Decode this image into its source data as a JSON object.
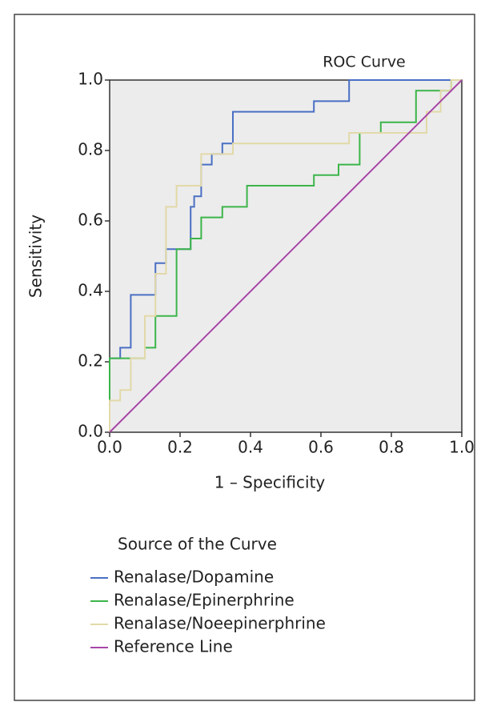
{
  "chart_data": {
    "type": "line",
    "title": "ROC Curve",
    "x_label": "1 – Specificity",
    "y_label": "Sensitivity",
    "legend_title": "Source of the Curve",
    "xlim": [
      0,
      1
    ],
    "ylim": [
      0,
      1
    ],
    "xticks": [
      {
        "value": 0,
        "label": "0.0"
      },
      0.2,
      0.4,
      0.6,
      0.8,
      {
        "value": 1,
        "label": "1.0"
      }
    ],
    "yticks": [
      {
        "value": 0,
        "label": "0.0"
      },
      0.2,
      0.4,
      0.6,
      0.8,
      {
        "value": 1,
        "label": "1.0"
      }
    ],
    "series": [
      {
        "name": "Renalase/Dopamine",
        "color": "#4a6fc4",
        "x": [
          0,
          0,
          0.03,
          0.03,
          0.06,
          0.06,
          0.13,
          0.13,
          0.16,
          0.16,
          0.23,
          0.23,
          0.24,
          0.24,
          0.26,
          0.26,
          0.29,
          0.29,
          0.32,
          0.32,
          0.35,
          0.35,
          0.58,
          0.58,
          0.68,
          0.68,
          1
        ],
        "values": [
          0,
          0.21,
          0.21,
          0.24,
          0.24,
          0.39,
          0.39,
          0.48,
          0.48,
          0.52,
          0.52,
          0.64,
          0.64,
          0.67,
          0.67,
          0.76,
          0.76,
          0.79,
          0.79,
          0.82,
          0.82,
          0.91,
          0.91,
          0.94,
          0.94,
          1,
          1
        ]
      },
      {
        "name": "Renalase/Epinerphrine",
        "color": "#3cb54a",
        "x": [
          0,
          0,
          0.1,
          0.1,
          0.13,
          0.13,
          0.19,
          0.19,
          0.23,
          0.23,
          0.26,
          0.26,
          0.32,
          0.32,
          0.39,
          0.39,
          0.58,
          0.58,
          0.65,
          0.65,
          0.71,
          0.71,
          0.77,
          0.77,
          0.87,
          0.87,
          0.97,
          0.97,
          1
        ],
        "values": [
          0,
          0.21,
          0.21,
          0.24,
          0.24,
          0.33,
          0.33,
          0.52,
          0.52,
          0.55,
          0.55,
          0.61,
          0.61,
          0.64,
          0.64,
          0.7,
          0.7,
          0.73,
          0.73,
          0.76,
          0.76,
          0.85,
          0.85,
          0.88,
          0.88,
          0.97,
          0.97,
          1,
          1
        ]
      },
      {
        "name": "Renalase/Noeepinerphrine",
        "color": "#e2d9a8",
        "x": [
          0,
          0,
          0.03,
          0.03,
          0.06,
          0.06,
          0.1,
          0.1,
          0.13,
          0.13,
          0.16,
          0.16,
          0.19,
          0.19,
          0.26,
          0.26,
          0.35,
          0.35,
          0.68,
          0.68,
          0.74,
          0.74,
          0.9,
          0.9,
          0.94,
          0.94,
          0.97,
          0.97,
          1
        ],
        "values": [
          0,
          0.09,
          0.09,
          0.12,
          0.12,
          0.21,
          0.21,
          0.33,
          0.33,
          0.45,
          0.45,
          0.64,
          0.64,
          0.7,
          0.7,
          0.79,
          0.79,
          0.82,
          0.82,
          0.85,
          0.85,
          0.85,
          0.85,
          0.91,
          0.91,
          0.97,
          0.97,
          1,
          1
        ]
      },
      {
        "name": "Reference Line",
        "color": "#a845a8",
        "x": [
          0,
          1
        ],
        "values": [
          0,
          1
        ]
      }
    ]
  }
}
